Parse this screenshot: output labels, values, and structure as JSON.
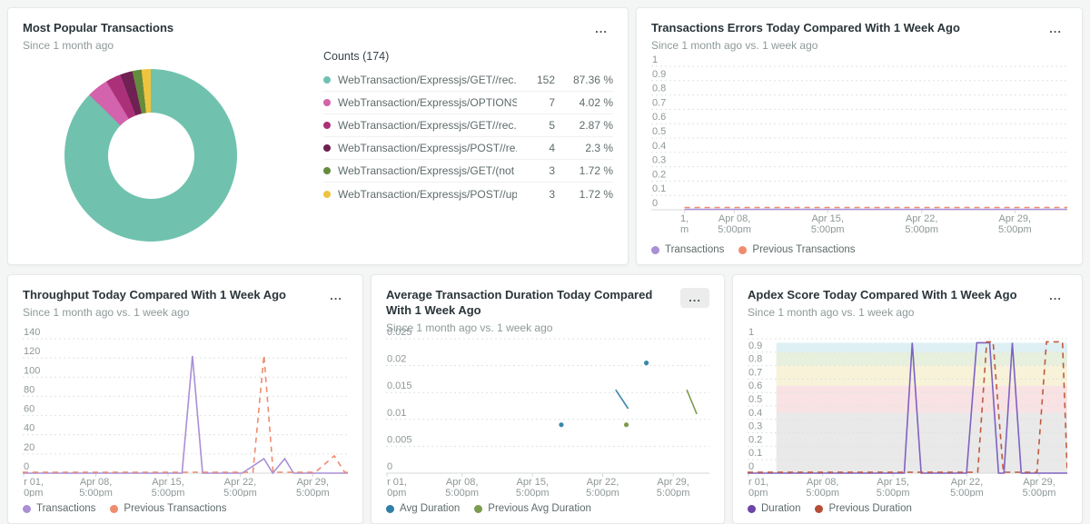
{
  "ui": {
    "menu_label": "..."
  },
  "panels": {
    "popular": {
      "title": "Most Popular Transactions",
      "subtitle": "Since 1 month ago",
      "chart_data": {
        "type": "pie",
        "table_header": "Counts (174)",
        "total": 174,
        "slices": [
          {
            "label": "WebTransaction/Expressjs/GET//rec...",
            "count": 152,
            "percent": "87.36 %",
            "pct": 87.36,
            "color": "#70c2ae"
          },
          {
            "label": "WebTransaction/Expressjs/OPTIONS//",
            "count": 7,
            "percent": "4.02 %",
            "pct": 4.02,
            "color": "#d263ac"
          },
          {
            "label": "WebTransaction/Expressjs/GET//rec...",
            "count": 5,
            "percent": "2.87 %",
            "pct": 2.87,
            "color": "#aa3179"
          },
          {
            "label": "WebTransaction/Expressjs/POST//re...",
            "count": 4,
            "percent": "2.3 %",
            "pct": 2.3,
            "color": "#6e2152"
          },
          {
            "label": "WebTransaction/Expressjs/GET/(not ...",
            "count": 3,
            "percent": "1.72 %",
            "pct": 1.72,
            "color": "#648c3c"
          },
          {
            "label": "WebTransaction/Expressjs/POST//up...",
            "count": 3,
            "percent": "1.72 %",
            "pct": 1.72,
            "color": "#eec43f"
          }
        ]
      }
    },
    "errors": {
      "title": "Transactions Errors Today Compared With 1 Week Ago",
      "subtitle": "Since 1 month ago vs. 1 week ago",
      "chart_data": {
        "type": "line",
        "ylim": [
          0,
          1
        ],
        "yticks": [
          "1",
          "0.9",
          "0.8",
          "0.7",
          "0.6",
          "0.5",
          "0.4",
          "0.3",
          "0.2",
          "0.1",
          "0"
        ],
        "xticks": [
          {
            "l1": "1,",
            "l2": "m",
            "frac": 0.08
          },
          {
            "l1": "Apr 08,",
            "l2": "5:00pm",
            "frac": 0.2
          },
          {
            "l1": "Apr 15,",
            "l2": "5:00pm",
            "frac": 0.424
          },
          {
            "l1": "Apr 22,",
            "l2": "5:00pm",
            "frac": 0.65
          },
          {
            "l1": "Apr 29,",
            "l2": "5:00pm",
            "frac": 0.874
          }
        ],
        "series": [
          {
            "name": "Transactions",
            "color": "#a98fd6",
            "dash": false,
            "dy": -0.5,
            "points": [
              [
                0.08,
                0
              ],
              [
                1,
                0
              ]
            ]
          },
          {
            "name": "Previous Transactions",
            "color": "#f08b6d",
            "dash": true,
            "dy": -2.5,
            "points": [
              [
                0.08,
                0
              ],
              [
                1,
                0
              ]
            ]
          }
        ],
        "legend": [
          {
            "label": "Transactions",
            "color": "#a98fd6"
          },
          {
            "label": "Previous Transactions",
            "color": "#f08b6d"
          }
        ]
      }
    },
    "throughput": {
      "title": "Throughput Today Compared With 1 Week Ago",
      "subtitle": "Since 1 month ago vs. 1 week ago",
      "chart_data": {
        "type": "line",
        "ylim": [
          0,
          140
        ],
        "yticks": [
          "140",
          "120",
          "100",
          "80",
          "60",
          "40",
          "20",
          "0"
        ],
        "xticks": [
          {
            "l1": "r 01,",
            "l2": "0pm",
            "frac": 0.003,
            "anchor": "start"
          },
          {
            "l1": "Apr 08,",
            "l2": "5:00pm",
            "frac": 0.225
          },
          {
            "l1": "Apr 15,",
            "l2": "5:00pm",
            "frac": 0.447
          },
          {
            "l1": "Apr 22,",
            "l2": "5:00pm",
            "frac": 0.669
          },
          {
            "l1": "Apr 29,",
            "l2": "5:00pm",
            "frac": 0.892
          }
        ],
        "series": [
          {
            "name": "Transactions",
            "color": "#a98fd6",
            "dash": false,
            "points": [
              [
                0,
                0
              ],
              [
                0.49,
                0
              ],
              [
                0.522,
                122
              ],
              [
                0.553,
                0
              ],
              [
                0.675,
                0
              ],
              [
                0.742,
                15
              ],
              [
                0.769,
                0
              ],
              [
                0.806,
                15
              ],
              [
                0.833,
                0
              ],
              [
                1,
                0
              ]
            ]
          },
          {
            "name": "Previous Transactions",
            "color": "#f08b6d",
            "dash": true,
            "dy": -1,
            "points": [
              [
                0,
                0
              ],
              [
                0.708,
                0
              ],
              [
                0.742,
                122
              ],
              [
                0.77,
                0
              ],
              [
                0.9,
                0
              ],
              [
                0.958,
                17
              ],
              [
                0.99,
                0
              ],
              [
                1,
                0
              ]
            ]
          }
        ],
        "legend": [
          {
            "label": "Transactions",
            "color": "#a98fd6"
          },
          {
            "label": "Previous Transactions",
            "color": "#f08b6d"
          }
        ]
      }
    },
    "duration": {
      "title": "Average Transaction Duration Today Compared With 1 Week Ago",
      "subtitle": "Since 1 month ago vs. 1 week ago",
      "chart_data": {
        "type": "scatter",
        "ylim": [
          0,
          0.025
        ],
        "yticks": [
          "0.025",
          "0.02",
          "0.015",
          "0.01",
          "0.005",
          "0"
        ],
        "xticks": [
          {
            "l1": "r 01,",
            "l2": "0pm",
            "frac": 0.003,
            "anchor": "start"
          },
          {
            "l1": "Apr 08,",
            "l2": "5:00pm",
            "frac": 0.235
          },
          {
            "l1": "Apr 15,",
            "l2": "5:00pm",
            "frac": 0.453
          },
          {
            "l1": "Apr 22,",
            "l2": "5:00pm",
            "frac": 0.67
          },
          {
            "l1": "Apr 29,",
            "l2": "5:00pm",
            "frac": 0.888
          }
        ],
        "series": [
          {
            "name": "Avg Duration",
            "color": "#3c87ad",
            "dash": false,
            "paths": [
              [
                [
                  0.71,
                  0.0155
                ],
                [
                  0.749,
                  0.012
                ]
              ]
            ],
            "dots": [
              [
                0.542,
                0.009
              ],
              [
                0.805,
                0.0205
              ]
            ]
          },
          {
            "name": "Previous Avg Duration",
            "color": "#7d9b4e",
            "dash": false,
            "paths": [
              [
                [
                  0.93,
                  0.0155
                ],
                [
                  0.961,
                  0.011
                ]
              ]
            ],
            "dots": [
              [
                0.743,
                0.009
              ]
            ]
          }
        ],
        "legend": [
          {
            "label": "Avg Duration",
            "color": "#2f7fa8"
          },
          {
            "label": "Previous Avg Duration",
            "color": "#7d9b4e"
          }
        ]
      }
    },
    "apdex": {
      "title": "Apdex Score Today Compared With 1 Week Ago",
      "subtitle": "Since 1 month ago vs. 1 week ago",
      "chart_data": {
        "type": "line",
        "ylim": [
          0,
          1
        ],
        "yticks": [
          "1",
          "0.9",
          "0.8",
          "0.7",
          "0.6",
          "0.5",
          "0.4",
          "0.3",
          "0.2",
          "0.1",
          "0"
        ],
        "band_left_frac": 0.09,
        "bands": [
          {
            "from": 0,
            "to": 0.45,
            "color": "#e9e9e9"
          },
          {
            "from": 0.45,
            "to": 0.65,
            "color": "#f8e2e4"
          },
          {
            "from": 0.65,
            "to": 0.8,
            "color": "#f8f2d8"
          },
          {
            "from": 0.8,
            "to": 0.9,
            "color": "#e6f0dd"
          },
          {
            "from": 0.9,
            "to": 0.97,
            "color": "#def0f4"
          }
        ],
        "xticks": [
          {
            "l1": "r 01,",
            "l2": "0pm",
            "frac": 0.003,
            "anchor": "start"
          },
          {
            "l1": "Apr 08,",
            "l2": "5:00pm",
            "frac": 0.235
          },
          {
            "l1": "Apr 15,",
            "l2": "5:00pm",
            "frac": 0.455
          },
          {
            "l1": "Apr 22,",
            "l2": "5:00pm",
            "frac": 0.686
          },
          {
            "l1": "Apr 29,",
            "l2": "5:00pm",
            "frac": 0.912
          }
        ],
        "series": [
          {
            "name": "Duration",
            "color": "#7e62c1",
            "dash": false,
            "points": [
              [
                0,
                0
              ],
              [
                0.49,
                0
              ],
              [
                0.515,
                0.97
              ],
              [
                0.543,
                0
              ],
              [
                0.685,
                0
              ],
              [
                0.717,
                0.97
              ],
              [
                0.757,
                0.97
              ],
              [
                0.785,
                0
              ],
              [
                0.802,
                0
              ],
              [
                0.828,
                0.97
              ],
              [
                0.856,
                0
              ],
              [
                1,
                0
              ]
            ]
          },
          {
            "name": "Previous Duration",
            "color": "#c05a3e",
            "dash": true,
            "dy": -1,
            "points": [
              [
                0,
                0
              ],
              [
                0.72,
                0
              ],
              [
                0.748,
                0.97
              ],
              [
                0.768,
                0.97
              ],
              [
                0.8,
                0
              ],
              [
                0.905,
                0
              ],
              [
                0.935,
                0.97
              ],
              [
                0.985,
                0.97
              ],
              [
                1,
                0
              ]
            ]
          }
        ],
        "legend": [
          {
            "label": "Duration",
            "color": "#6b46a8"
          },
          {
            "label": "Previous Duration",
            "color": "#b54e35"
          }
        ]
      }
    }
  }
}
